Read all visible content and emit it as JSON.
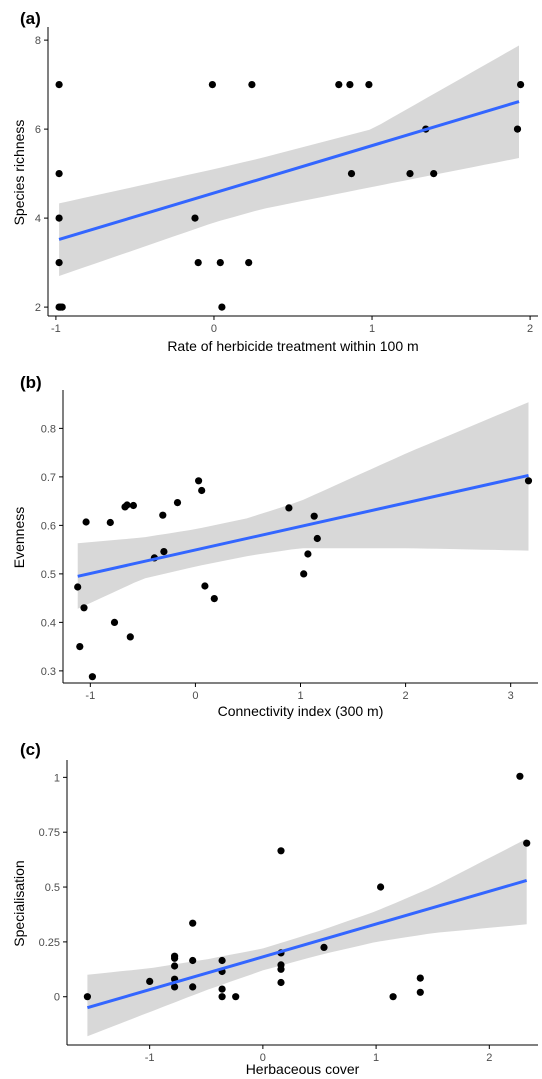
{
  "figure": {
    "colors": {
      "line": "#3366FF",
      "band": "#BEBEBE",
      "point": "#000000",
      "axis": "#000000"
    }
  },
  "chart_data": [
    {
      "type": "scatter",
      "panel": "(a)",
      "xlabel": "Rate of herbicide treatment within 100 m",
      "ylabel": "Species richness",
      "xlim": [
        -1.05,
        2.05
      ],
      "ylim": [
        1.8,
        8.25
      ],
      "xticks": [
        -1,
        0,
        1,
        2
      ],
      "yticks": [
        2,
        4,
        6,
        8
      ],
      "xtick_labels": [
        "-1",
        "0",
        "1",
        "2"
      ],
      "ytick_labels": [
        "2",
        "4",
        "6",
        "8"
      ],
      "grid": false,
      "points": [
        {
          "x": -0.98,
          "y": 7
        },
        {
          "x": -0.98,
          "y": 5
        },
        {
          "x": -0.98,
          "y": 4
        },
        {
          "x": -0.98,
          "y": 3
        },
        {
          "x": -0.98,
          "y": 2
        },
        {
          "x": -0.97,
          "y": 2
        },
        {
          "x": -0.96,
          "y": 2
        },
        {
          "x": -0.01,
          "y": 7
        },
        {
          "x": 0.24,
          "y": 7
        },
        {
          "x": 0.79,
          "y": 7
        },
        {
          "x": 0.86,
          "y": 7
        },
        {
          "x": 0.98,
          "y": 7
        },
        {
          "x": 1.94,
          "y": 7
        },
        {
          "x": 1.34,
          "y": 6
        },
        {
          "x": 1.92,
          "y": 6
        },
        {
          "x": 0.87,
          "y": 5
        },
        {
          "x": 1.24,
          "y": 5
        },
        {
          "x": 1.39,
          "y": 5
        },
        {
          "x": -0.12,
          "y": 4
        },
        {
          "x": -0.1,
          "y": 3
        },
        {
          "x": 0.04,
          "y": 3
        },
        {
          "x": 0.22,
          "y": 3
        },
        {
          "x": 0.05,
          "y": 2
        }
      ],
      "fit": {
        "x": [
          -0.98,
          1.93
        ],
        "y": [
          3.52,
          6.62
        ]
      },
      "ci": {
        "x": [
          -0.98,
          0.0,
          0.3,
          1.0,
          1.93
        ],
        "lower": [
          2.7,
          3.9,
          4.2,
          4.7,
          5.35
        ],
        "upper": [
          4.33,
          5.1,
          5.35,
          6.0,
          7.88
        ]
      }
    },
    {
      "type": "scatter",
      "panel": "(b)",
      "xlabel": "Connectivity index (300 m)",
      "ylabel": "Evenness",
      "xlim": [
        -1.26,
        3.26
      ],
      "ylim": [
        0.275,
        0.875
      ],
      "xticks": [
        -1,
        0,
        1,
        2,
        3
      ],
      "yticks": [
        0.3,
        0.4,
        0.5,
        0.6,
        0.7,
        0.8
      ],
      "xtick_labels": [
        "-1",
        "0",
        "1",
        "2",
        "3"
      ],
      "ytick_labels": [
        "0.3",
        "0.4",
        "0.5",
        "0.6",
        "0.7",
        "0.8"
      ],
      "grid": false,
      "points": [
        {
          "x": -1.12,
          "y": 0.473
        },
        {
          "x": -1.1,
          "y": 0.35
        },
        {
          "x": -1.06,
          "y": 0.43
        },
        {
          "x": -1.04,
          "y": 0.607
        },
        {
          "x": -0.98,
          "y": 0.288
        },
        {
          "x": -0.81,
          "y": 0.606
        },
        {
          "x": -0.77,
          "y": 0.4
        },
        {
          "x": -0.67,
          "y": 0.638
        },
        {
          "x": -0.65,
          "y": 0.642
        },
        {
          "x": -0.62,
          "y": 0.37
        },
        {
          "x": -0.59,
          "y": 0.641
        },
        {
          "x": -0.39,
          "y": 0.533
        },
        {
          "x": -0.31,
          "y": 0.621
        },
        {
          "x": -0.3,
          "y": 0.546
        },
        {
          "x": -0.17,
          "y": 0.647
        },
        {
          "x": 0.03,
          "y": 0.692
        },
        {
          "x": 0.06,
          "y": 0.672
        },
        {
          "x": 0.09,
          "y": 0.475
        },
        {
          "x": 0.18,
          "y": 0.449
        },
        {
          "x": 0.89,
          "y": 0.636
        },
        {
          "x": 1.03,
          "y": 0.5
        },
        {
          "x": 1.07,
          "y": 0.541
        },
        {
          "x": 1.13,
          "y": 0.619
        },
        {
          "x": 1.16,
          "y": 0.573
        },
        {
          "x": 3.17,
          "y": 0.692
        }
      ],
      "fit": {
        "x": [
          -1.12,
          3.17
        ],
        "y": [
          0.495,
          0.703
        ]
      },
      "ci": {
        "x": [
          -1.12,
          -0.5,
          0.0,
          0.5,
          1.0,
          2.0,
          3.17
        ],
        "lower": [
          0.428,
          0.49,
          0.515,
          0.537,
          0.553,
          0.553,
          0.548
        ],
        "upper": [
          0.563,
          0.575,
          0.592,
          0.615,
          0.65,
          0.748,
          0.854
        ]
      }
    },
    {
      "type": "scatter",
      "panel": "(c)",
      "xlabel": "Herbaceous cover",
      "ylabel": "Specialisation",
      "xlim": [
        -1.73,
        2.43
      ],
      "ylim": [
        -0.22,
        1.07
      ],
      "xticks": [
        -1,
        0,
        1,
        2
      ],
      "yticks": [
        0,
        0.25,
        0.5,
        0.75,
        1
      ],
      "xtick_labels": [
        "-1",
        "0",
        "1",
        "2"
      ],
      "ytick_labels": [
        "0",
        "0.25",
        "0.5",
        "0.75",
        "1"
      ],
      "grid": false,
      "points": [
        {
          "x": -1.55,
          "y": 0.0
        },
        {
          "x": -1.0,
          "y": 0.07
        },
        {
          "x": -0.78,
          "y": 0.185
        },
        {
          "x": -0.78,
          "y": 0.175
        },
        {
          "x": -0.78,
          "y": 0.14
        },
        {
          "x": -0.78,
          "y": 0.08
        },
        {
          "x": -0.78,
          "y": 0.045
        },
        {
          "x": -0.62,
          "y": 0.335
        },
        {
          "x": -0.62,
          "y": 0.165
        },
        {
          "x": -0.62,
          "y": 0.045
        },
        {
          "x": -0.36,
          "y": 0.165
        },
        {
          "x": -0.36,
          "y": 0.115
        },
        {
          "x": -0.36,
          "y": 0.035
        },
        {
          "x": -0.36,
          "y": 0.0
        },
        {
          "x": -0.24,
          "y": 0.0
        },
        {
          "x": 0.16,
          "y": 0.665
        },
        {
          "x": 0.16,
          "y": 0.2
        },
        {
          "x": 0.16,
          "y": 0.145
        },
        {
          "x": 0.16,
          "y": 0.125
        },
        {
          "x": 0.16,
          "y": 0.065
        },
        {
          "x": 0.54,
          "y": 0.225
        },
        {
          "x": 1.04,
          "y": 0.5
        },
        {
          "x": 1.15,
          "y": 0.0
        },
        {
          "x": 1.39,
          "y": 0.085
        },
        {
          "x": 1.39,
          "y": 0.02
        },
        {
          "x": 2.27,
          "y": 1.005
        },
        {
          "x": 2.33,
          "y": 0.7
        }
      ],
      "fit": {
        "x": [
          -1.55,
          2.33
        ],
        "y": [
          -0.05,
          0.53
        ]
      },
      "ci": {
        "x": [
          -1.55,
          -1.0,
          -0.5,
          0.0,
          0.5,
          1.0,
          1.5,
          2.33
        ],
        "lower": [
          -0.18,
          -0.07,
          0.03,
          0.12,
          0.19,
          0.25,
          0.29,
          0.33
        ],
        "upper": [
          0.1,
          0.13,
          0.17,
          0.22,
          0.3,
          0.39,
          0.5,
          0.72
        ]
      }
    }
  ]
}
